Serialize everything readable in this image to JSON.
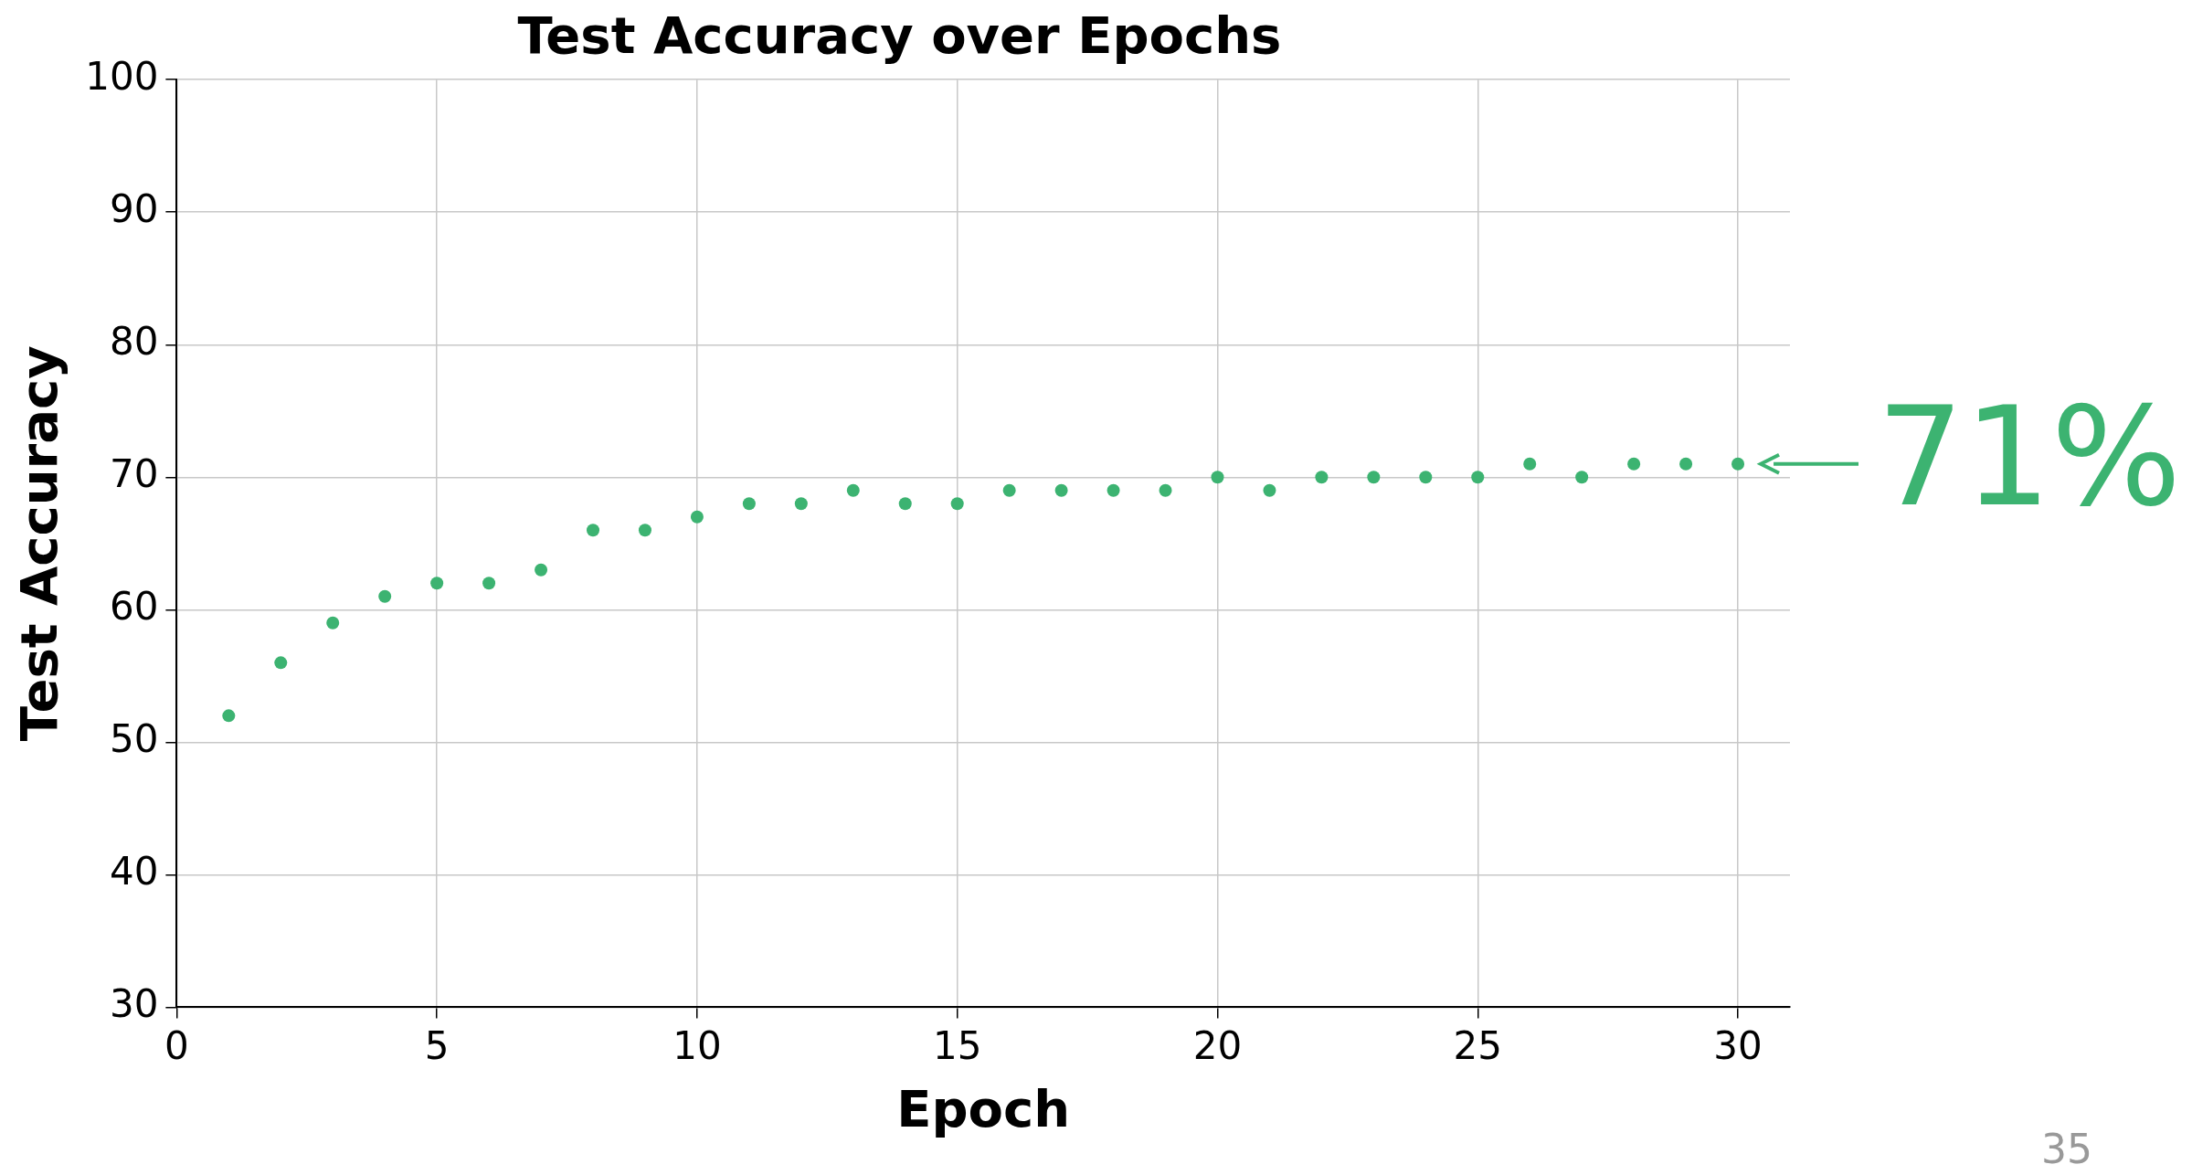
{
  "chart_data": {
    "type": "scatter",
    "title": "Test Accuracy over Epochs",
    "xlabel": "Epoch",
    "ylabel": "Test Accuracy",
    "x": [
      1,
      2,
      3,
      4,
      5,
      6,
      7,
      8,
      9,
      10,
      11,
      12,
      13,
      14,
      15,
      16,
      17,
      18,
      19,
      20,
      21,
      22,
      23,
      24,
      25,
      26,
      27,
      28,
      29,
      30
    ],
    "series": [
      {
        "color": "#3cb371",
        "values": [
          52,
          56,
          59,
          61,
          62,
          62,
          63,
          66,
          66,
          67,
          68,
          68,
          69,
          68,
          68,
          69,
          69,
          69,
          69,
          70,
          69,
          70,
          70,
          70,
          70,
          71,
          70,
          71,
          71,
          71
        ]
      }
    ],
    "xlim": [
      0,
      31
    ],
    "xticks": [
      0,
      5,
      10,
      15,
      20,
      25,
      30
    ],
    "ylim": [
      30,
      100
    ],
    "yticks": [
      30,
      40,
      50,
      60,
      70,
      80,
      90,
      100
    ],
    "grid": true,
    "marker": "circle",
    "legend": false,
    "annotations": [
      {
        "text": "71%",
        "x": 30,
        "y": 71
      },
      "35"
    ]
  }
}
